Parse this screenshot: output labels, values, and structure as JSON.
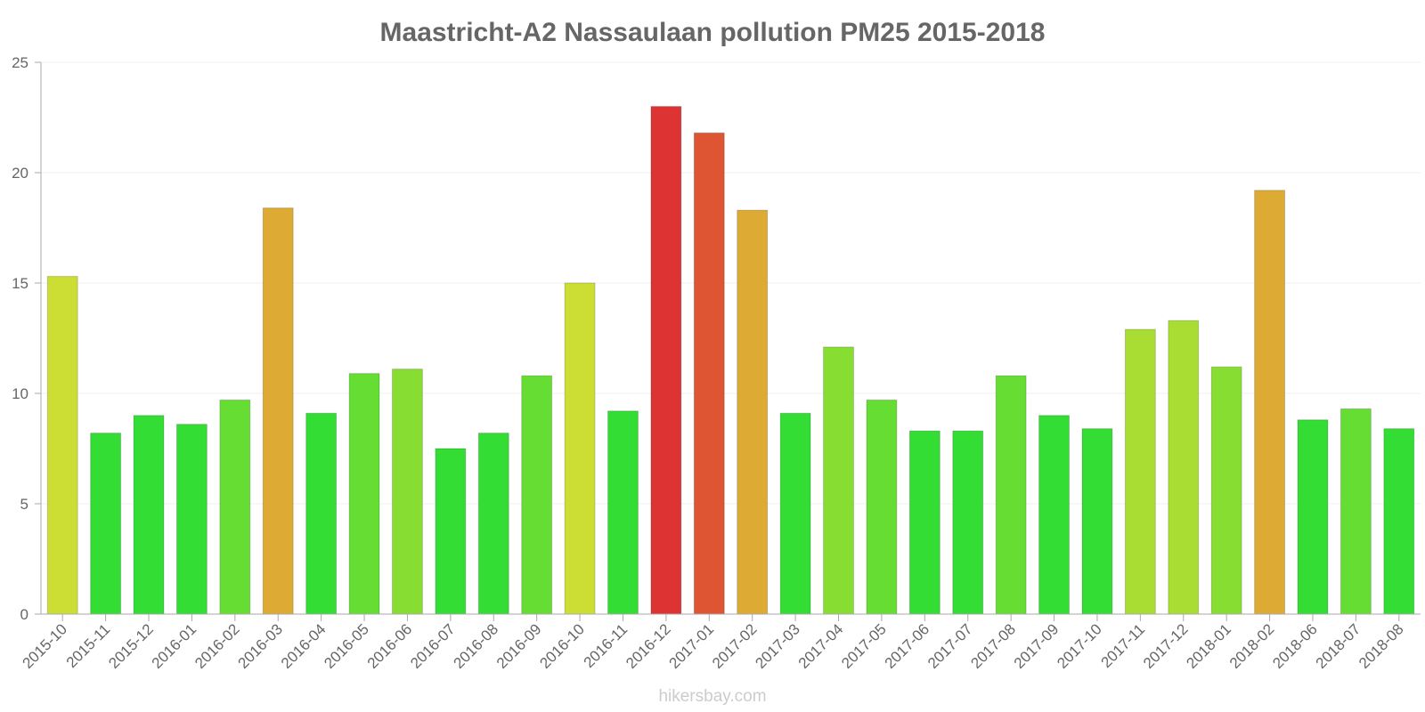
{
  "chart_data": {
    "type": "bar",
    "title": "Maastricht-A2 Nassaulaan pollution PM25 2015-2018",
    "xlabel": "",
    "ylabel": "",
    "ylim": [
      0,
      25
    ],
    "yticks": [
      "0",
      "5",
      "10",
      "15",
      "20",
      "25"
    ],
    "grid": true,
    "categories": [
      "2015-10",
      "2015-11",
      "2015-12",
      "2016-01",
      "2016-02",
      "2016-03",
      "2016-04",
      "2016-05",
      "2016-06",
      "2016-07",
      "2016-08",
      "2016-09",
      "2016-10",
      "2016-11",
      "2016-12",
      "2017-01",
      "2017-02",
      "2017-03",
      "2017-04",
      "2017-05",
      "2017-06",
      "2017-07",
      "2017-08",
      "2017-09",
      "2017-10",
      "2017-11",
      "2017-12",
      "2018-01",
      "2018-02",
      "2018-06",
      "2018-07",
      "2018-08"
    ],
    "values": [
      15.3,
      8.2,
      9.0,
      8.6,
      9.7,
      18.4,
      9.1,
      10.9,
      11.1,
      7.5,
      8.2,
      10.8,
      15.0,
      9.2,
      23.0,
      21.8,
      18.3,
      9.1,
      12.1,
      9.7,
      8.3,
      8.3,
      10.8,
      9.0,
      8.4,
      12.9,
      13.3,
      11.2,
      19.2,
      8.8,
      9.3,
      8.4
    ],
    "colors": [
      "#ccdd33",
      "#33dd33",
      "#33dd33",
      "#33dd33",
      "#66dd33",
      "#ddaa33",
      "#33dd33",
      "#66dd33",
      "#88dd33",
      "#33dd33",
      "#33dd33",
      "#66dd33",
      "#ccdd33",
      "#33dd33",
      "#dd3333",
      "#dd5533",
      "#ddaa33",
      "#33dd33",
      "#88dd33",
      "#66dd33",
      "#33dd33",
      "#33dd33",
      "#66dd33",
      "#33dd33",
      "#33dd33",
      "#aadd33",
      "#aadd33",
      "#88dd33",
      "#ddaa33",
      "#33dd33",
      "#66dd33",
      "#33dd33"
    ]
  },
  "watermark": "hikersbay.com"
}
